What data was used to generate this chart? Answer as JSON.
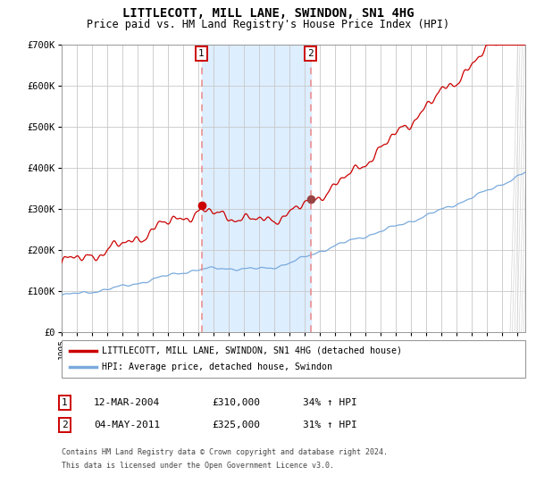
{
  "title": "LITTLECOTT, MILL LANE, SWINDON, SN1 4HG",
  "subtitle": "Price paid vs. HM Land Registry's House Price Index (HPI)",
  "title_fontsize": 10,
  "subtitle_fontsize": 8.5,
  "ylim": [
    0,
    700000
  ],
  "yticks": [
    0,
    100000,
    200000,
    300000,
    400000,
    500000,
    600000,
    700000
  ],
  "ytick_labels": [
    "£0",
    "£100K",
    "£200K",
    "£300K",
    "£400K",
    "£500K",
    "£600K",
    "£700K"
  ],
  "background_color": "#ffffff",
  "plot_bg_color": "#ffffff",
  "grid_color": "#c8c8c8",
  "red_line_color": "#cc0000",
  "blue_line_color": "#7aaadd",
  "shaded_region_color": "#ddeeff",
  "dashed_line_color": "#ee8888",
  "marker1_x": 2004.2,
  "marker1_y": 310000,
  "marker2_x": 2011.37,
  "marker2_y": 325000,
  "shade_x1": 2004.2,
  "shade_x2": 2011.37,
  "legend_label1": "LITTLECOTT, MILL LANE, SWINDON, SN1 4HG (detached house)",
  "legend_label2": "HPI: Average price, detached house, Swindon",
  "label1_date": "12-MAR-2004",
  "label1_price": "£310,000",
  "label1_hpi": "34% ↑ HPI",
  "label2_date": "04-MAY-2011",
  "label2_price": "£325,000",
  "label2_hpi": "31% ↑ HPI",
  "footnote1": "Contains HM Land Registry data © Crown copyright and database right 2024.",
  "footnote2": "This data is licensed under the Open Government Licence v3.0.",
  "xmin": 1995,
  "xmax": 2025.5
}
